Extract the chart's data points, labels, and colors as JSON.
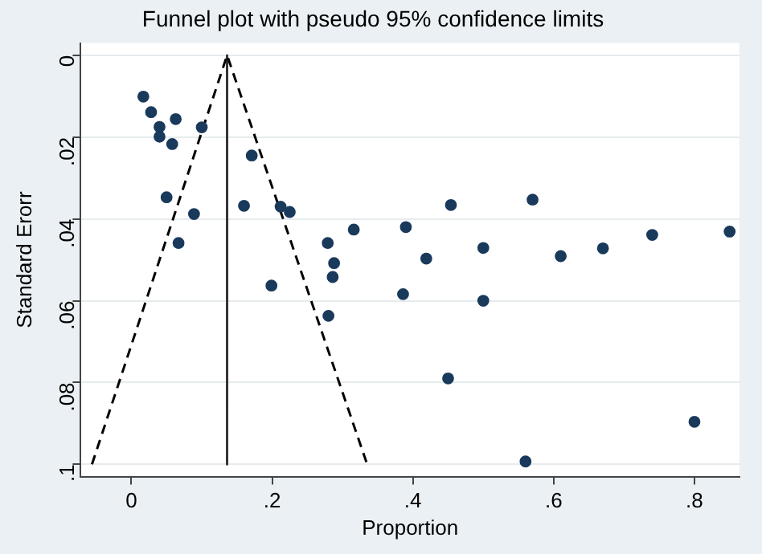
{
  "chart_data": {
    "type": "scatter",
    "title": "Funnel plot with pseudo 95% confidence limits",
    "xlabel": "Proportion",
    "ylabel": "Standard Erorr",
    "xlim": [
      -0.072,
      0.864
    ],
    "ylim": [
      0.103,
      -0.003
    ],
    "xticks": [
      {
        "value": 0,
        "label": "0"
      },
      {
        "value": 0.2,
        "label": ".2"
      },
      {
        "value": 0.4,
        "label": ".4"
      },
      {
        "value": 0.6,
        "label": ".6"
      },
      {
        "value": 0.8,
        "label": ".8"
      }
    ],
    "yticks": [
      {
        "value": 0,
        "label": "0"
      },
      {
        "value": 0.02,
        "label": ".02"
      },
      {
        "value": 0.04,
        "label": ".04"
      },
      {
        "value": 0.06,
        "label": ".06"
      },
      {
        "value": 0.08,
        "label": ".08"
      },
      {
        "value": 0.1,
        "label": ".1"
      }
    ],
    "grid": "y",
    "series": [
      {
        "type": "scatter",
        "color": "#1a3a5c",
        "marker": "circle",
        "x": [
          0.017,
          0.028,
          0.04,
          0.04,
          0.058,
          0.063,
          0.1,
          0.05,
          0.089,
          0.067,
          0.171,
          0.16,
          0.212,
          0.225,
          0.316,
          0.279,
          0.288,
          0.286,
          0.199,
          0.28,
          0.39,
          0.419,
          0.454,
          0.5,
          0.57,
          0.61,
          0.67,
          0.74,
          0.85,
          0.386,
          0.5,
          0.45,
          0.56,
          0.8
        ],
        "values": [
          0.0101,
          0.0139,
          0.0175,
          0.0199,
          0.0217,
          0.0156,
          0.0176,
          0.0347,
          0.0388,
          0.0459,
          0.0245,
          0.0368,
          0.037,
          0.0383,
          0.0426,
          0.0459,
          0.0508,
          0.0542,
          0.0563,
          0.0637,
          0.042,
          0.0497,
          0.0366,
          0.0471,
          0.0353,
          0.0491,
          0.0472,
          0.0439,
          0.0431,
          0.0584,
          0.06,
          0.079,
          0.0993,
          0.0896
        ]
      },
      {
        "type": "line",
        "color": "#000000",
        "line_style": "dashed",
        "x": [
          -0.056,
          0.136,
          0.335
        ],
        "values": [
          0.1,
          0,
          0.1
        ]
      },
      {
        "type": "line",
        "color": "#333333",
        "line_style": "solid",
        "x": [
          0.136,
          0.136
        ],
        "values": [
          0,
          0.1
        ]
      }
    ]
  }
}
